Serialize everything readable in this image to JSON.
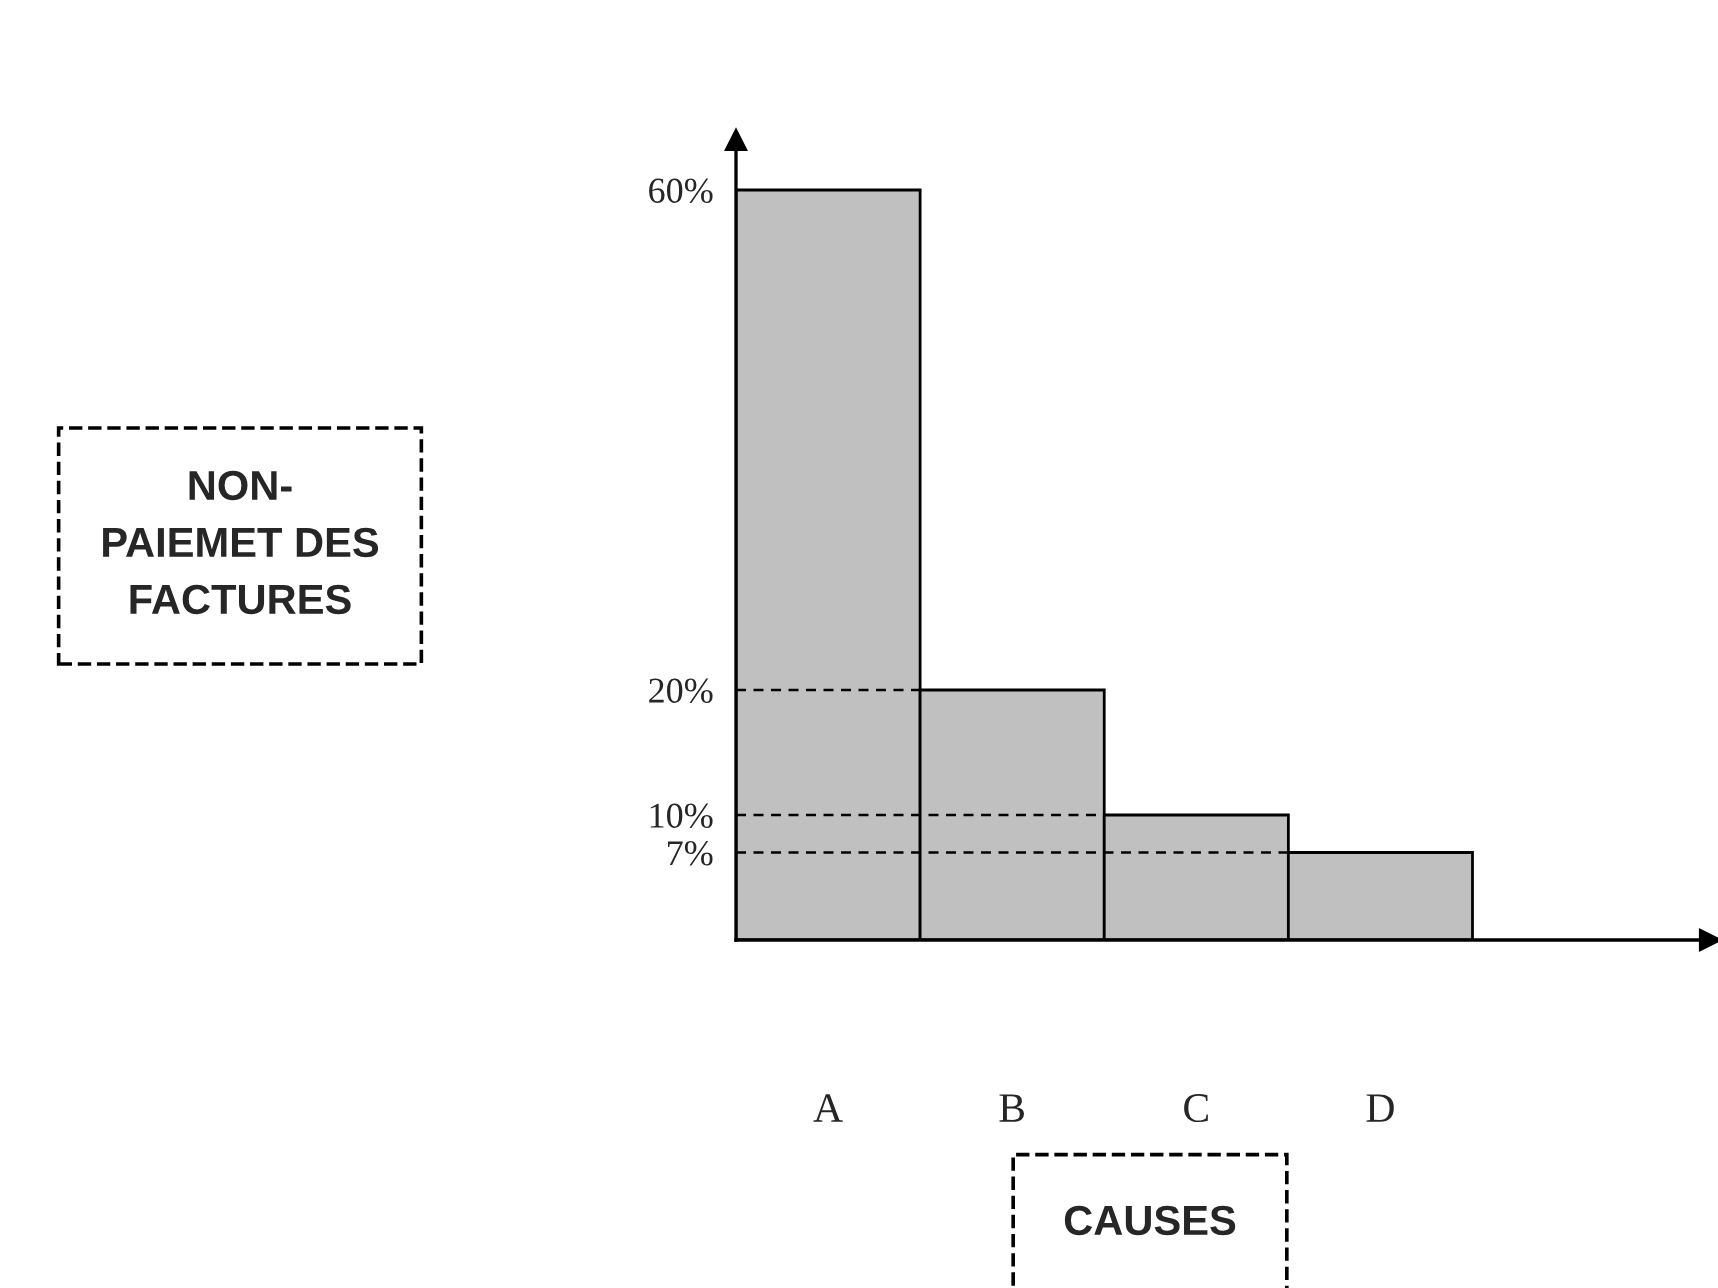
{
  "chart_data": {
    "type": "bar",
    "categories": [
      "A",
      "B",
      "C",
      "D"
    ],
    "values": [
      60,
      20,
      10,
      7
    ],
    "color": "#c0c0c0",
    "ylim": [
      0,
      64
    ],
    "yticks": [
      {
        "value": 60,
        "label": "60%"
      },
      {
        "value": 20,
        "label": "20%"
      },
      {
        "value": 10,
        "label": "10%"
      },
      {
        "value": 7,
        "label": "7%"
      }
    ],
    "xlabel": "CAUSES",
    "annotations": [
      "NON-\nPAIEMET DES\nFACTURES"
    ],
    "ref_lines": [
      {
        "axis": "y",
        "value": 20,
        "line_style": "dashed",
        "color": "#000000"
      },
      {
        "axis": "y",
        "value": 10,
        "line_style": "dashed",
        "color": "#000000"
      },
      {
        "axis": "y",
        "value": 7,
        "line_style": "dashed",
        "color": "#000000"
      }
    ]
  }
}
